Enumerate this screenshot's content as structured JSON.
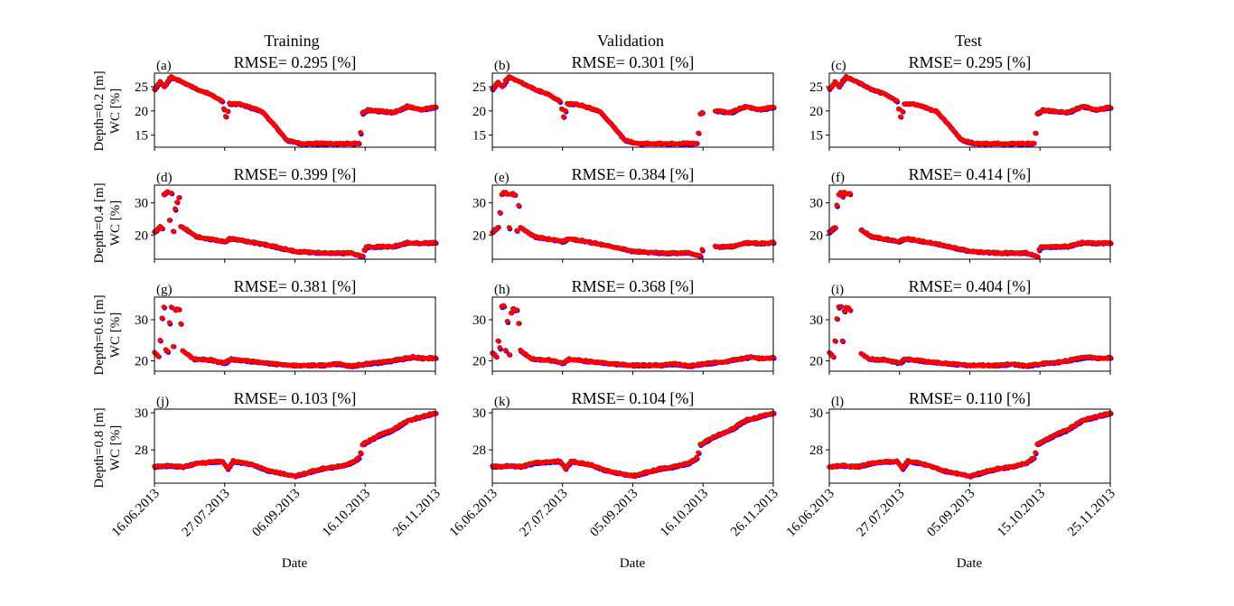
{
  "chart_data": {
    "type": "scatter",
    "series_colors": {
      "observed": "#0000ff",
      "predicted": "#ff0000"
    },
    "columns": [
      {
        "title": "Training",
        "xlabel": "Date",
        "date_ticks": [
          "16.06.2013",
          "27.07.2013",
          "06.09.2013",
          "16.10.2013",
          "26.11.2013"
        ]
      },
      {
        "title": "Validation",
        "xlabel": "Date",
        "date_ticks": [
          "16.06.2013",
          "27.07.2013",
          "05.09.2013",
          "16.10.2013",
          "26.11.2013"
        ]
      },
      {
        "title": "Test",
        "xlabel": "Date",
        "date_ticks": [
          "16.06.2013",
          "27.07.2013",
          "05.09.2013",
          "15.10.2013",
          "25.11.2013"
        ]
      }
    ],
    "rows": [
      {
        "ylabel": "Depth=0.2 [m]\nWC [%]",
        "ylim": [
          12.5,
          27.8
        ],
        "yticks": [
          15,
          20,
          25
        ]
      },
      {
        "ylabel": "Depth=0.4 [m]\nWC [%]",
        "ylim": [
          12.5,
          35.5
        ],
        "yticks": [
          20,
          30
        ]
      },
      {
        "ylabel": "Depth=0.6 [m]\nWC [%]",
        "ylim": [
          17.5,
          35.5
        ],
        "yticks": [
          20,
          30
        ]
      },
      {
        "ylabel": "Depth=0.8 [m]\nWC [%]",
        "ylim": [
          26.2,
          30.2
        ],
        "yticks": [
          28,
          30
        ]
      }
    ],
    "panels": [
      {
        "label": "(a)",
        "rmse": "RMSE= 0.295 [%]",
        "row": 0,
        "col": 0,
        "gap": null
      },
      {
        "label": "(b)",
        "rmse": "RMSE= 0.301 [%]",
        "row": 0,
        "col": 1,
        "gap": [
          0.75,
          0.79
        ]
      },
      {
        "label": "(c)",
        "rmse": "RMSE= 0.295 [%]",
        "row": 0,
        "col": 2,
        "gap": null
      },
      {
        "label": "(d)",
        "rmse": "RMSE= 0.399 [%]",
        "row": 1,
        "col": 0,
        "gap": null
      },
      {
        "label": "(e)",
        "rmse": "RMSE= 0.384 [%]",
        "row": 1,
        "col": 1,
        "gap": [
          0.75,
          0.79
        ]
      },
      {
        "label": "(f)",
        "rmse": "RMSE= 0.414 [%]",
        "row": 1,
        "col": 2,
        "gap": [
          0.075,
          0.11
        ]
      },
      {
        "label": "(g)",
        "rmse": "RMSE= 0.381 [%]",
        "row": 2,
        "col": 0,
        "gap": null
      },
      {
        "label": "(h)",
        "rmse": "RMSE= 0.368 [%]",
        "row": 2,
        "col": 1,
        "gap": null
      },
      {
        "label": "(i)",
        "rmse": "RMSE= 0.404 [%]",
        "row": 2,
        "col": 2,
        "gap": [
          0.075,
          0.11
        ]
      },
      {
        "label": "(j)",
        "rmse": "RMSE= 0.103 [%]",
        "row": 3,
        "col": 0,
        "gap": null
      },
      {
        "label": "(k)",
        "rmse": "RMSE= 0.104 [%]",
        "row": 3,
        "col": 1,
        "gap": null
      },
      {
        "label": "(l)",
        "rmse": "RMSE= 0.110 [%]",
        "row": 3,
        "col": 2,
        "gap": null
      }
    ],
    "profiles": [
      [
        [
          0.0,
          24.5
        ],
        [
          0.02,
          26.0
        ],
        [
          0.035,
          25.0
        ],
        [
          0.05,
          26.5
        ],
        [
          0.06,
          27.0
        ],
        [
          0.1,
          26.0
        ],
        [
          0.15,
          24.5
        ],
        [
          0.2,
          23.5
        ],
        [
          0.24,
          22.0
        ],
        [
          0.255,
          18.5
        ],
        [
          0.265,
          21.5
        ],
        [
          0.3,
          21.5
        ],
        [
          0.38,
          20.0
        ],
        [
          0.42,
          17.5
        ],
        [
          0.47,
          14.0
        ],
        [
          0.52,
          13.3
        ],
        [
          0.6,
          13.3
        ],
        [
          0.72,
          13.3
        ],
        [
          0.73,
          13.4
        ],
        [
          0.74,
          19.5
        ],
        [
          0.76,
          20.2
        ],
        [
          0.8,
          20.0
        ],
        [
          0.85,
          19.7
        ],
        [
          0.9,
          21.0
        ],
        [
          0.95,
          20.3
        ],
        [
          1.0,
          20.8
        ]
      ],
      [
        [
          0.0,
          21.0
        ],
        [
          0.02,
          22.5
        ],
        [
          0.03,
          32.5
        ],
        [
          0.045,
          33.5
        ],
        [
          0.06,
          33.0
        ],
        [
          0.09,
          32.5
        ],
        [
          0.1,
          22.5
        ],
        [
          0.15,
          19.5
        ],
        [
          0.2,
          18.8
        ],
        [
          0.25,
          18.0
        ],
        [
          0.27,
          19.0
        ],
        [
          0.32,
          18.3
        ],
        [
          0.4,
          17.0
        ],
        [
          0.5,
          15.0
        ],
        [
          0.6,
          14.5
        ],
        [
          0.7,
          14.5
        ],
        [
          0.74,
          13.5
        ],
        [
          0.75,
          16.3
        ],
        [
          0.8,
          16.5
        ],
        [
          0.85,
          16.5
        ],
        [
          0.9,
          17.7
        ],
        [
          0.95,
          17.5
        ],
        [
          1.0,
          17.7
        ]
      ],
      [
        [
          0.0,
          22.0
        ],
        [
          0.015,
          21.0
        ],
        [
          0.03,
          33.0
        ],
        [
          0.045,
          33.5
        ],
        [
          0.06,
          33.0
        ],
        [
          0.09,
          32.5
        ],
        [
          0.1,
          22.5
        ],
        [
          0.14,
          20.5
        ],
        [
          0.2,
          20.3
        ],
        [
          0.25,
          19.5
        ],
        [
          0.27,
          20.5
        ],
        [
          0.4,
          19.5
        ],
        [
          0.5,
          19.0
        ],
        [
          0.6,
          19.0
        ],
        [
          0.65,
          19.3
        ],
        [
          0.7,
          18.8
        ],
        [
          0.75,
          19.3
        ],
        [
          0.82,
          19.8
        ],
        [
          0.88,
          20.5
        ],
        [
          0.92,
          21.0
        ],
        [
          0.95,
          20.7
        ],
        [
          1.0,
          20.8
        ]
      ],
      [
        [
          0.0,
          27.1
        ],
        [
          0.05,
          27.15
        ],
        [
          0.1,
          27.1
        ],
        [
          0.15,
          27.3
        ],
        [
          0.24,
          27.4
        ],
        [
          0.26,
          27.0
        ],
        [
          0.28,
          27.4
        ],
        [
          0.35,
          27.2
        ],
        [
          0.4,
          26.9
        ],
        [
          0.5,
          26.6
        ],
        [
          0.55,
          26.8
        ],
        [
          0.6,
          27.0
        ],
        [
          0.65,
          27.1
        ],
        [
          0.7,
          27.3
        ],
        [
          0.73,
          27.6
        ],
        [
          0.74,
          28.3
        ],
        [
          0.8,
          28.8
        ],
        [
          0.85,
          29.1
        ],
        [
          0.9,
          29.6
        ],
        [
          0.95,
          29.8
        ],
        [
          1.0,
          30.0
        ]
      ]
    ]
  }
}
